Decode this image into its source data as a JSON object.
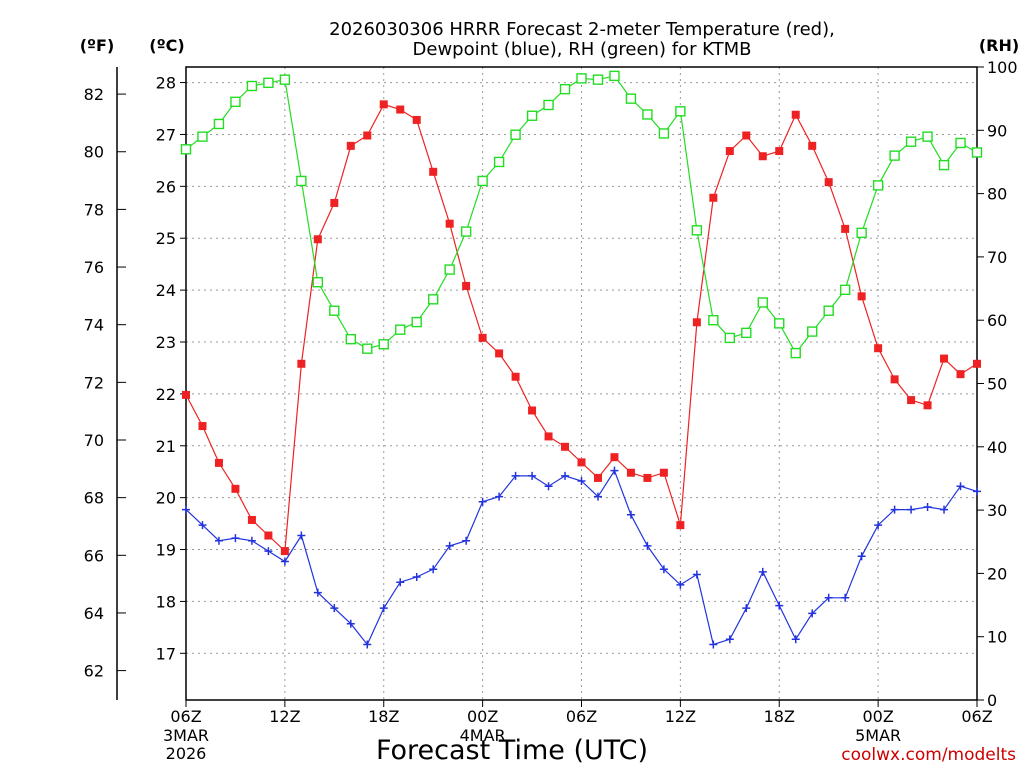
{
  "chart_data": {
    "type": "line",
    "title_lines": [
      "2026030306 HRRR Forecast 2-meter Temperature (red),",
      "Dewpoint (blue), RH (green) for KTMB"
    ],
    "xlabel": "Forecast Time (UTC)",
    "credit": "coolwx.com/modelts",
    "x_hours": [
      0,
      1,
      2,
      3,
      4,
      5,
      6,
      7,
      8,
      9,
      10,
      11,
      12,
      13,
      14,
      15,
      16,
      17,
      18,
      19,
      20,
      21,
      22,
      23,
      24,
      25,
      26,
      27,
      28,
      29,
      30,
      31,
      32,
      33,
      34,
      35,
      36,
      37,
      38,
      39,
      40,
      41,
      42,
      43,
      44,
      45,
      46,
      47,
      48
    ],
    "xlim": [
      0,
      48
    ],
    "x_ticks": [
      {
        "hour": 0,
        "label": "06Z",
        "sub": [
          "3MAR",
          "2026"
        ]
      },
      {
        "hour": 6,
        "label": "12Z",
        "sub": []
      },
      {
        "hour": 12,
        "label": "18Z",
        "sub": []
      },
      {
        "hour": 18,
        "label": "00Z",
        "sub": [
          "4MAR"
        ]
      },
      {
        "hour": 24,
        "label": "06Z",
        "sub": []
      },
      {
        "hour": 30,
        "label": "12Z",
        "sub": []
      },
      {
        "hour": 36,
        "label": "18Z",
        "sub": []
      },
      {
        "hour": 42,
        "label": "00Z",
        "sub": [
          "5MAR"
        ]
      },
      {
        "hour": 48,
        "label": "06Z",
        "sub": []
      }
    ],
    "axes": {
      "celsius": {
        "unit_label": "(ºC)",
        "range": [
          16.1,
          28.3
        ],
        "ticks": [
          17,
          18,
          19,
          20,
          21,
          22,
          23,
          24,
          25,
          26,
          27,
          28
        ]
      },
      "fahrenheit": {
        "unit_label": "(ºF)",
        "ticks": [
          62,
          64,
          66,
          68,
          70,
          72,
          74,
          76,
          78,
          80,
          82
        ]
      },
      "rh": {
        "unit_label": "(RH)",
        "range": [
          0,
          100
        ],
        "ticks": [
          0,
          10,
          20,
          30,
          40,
          50,
          60,
          70,
          80,
          90,
          100
        ]
      }
    },
    "series": [
      {
        "name": "Temperature",
        "axis": "celsius",
        "color": "#ee2222",
        "marker": "filled-square",
        "values": [
          21.98,
          21.38,
          20.67,
          20.17,
          19.57,
          19.27,
          18.97,
          22.58,
          24.98,
          25.68,
          26.78,
          26.98,
          27.58,
          27.48,
          27.28,
          26.28,
          25.28,
          24.08,
          23.08,
          22.78,
          22.33,
          21.68,
          21.18,
          20.98,
          20.68,
          20.38,
          20.78,
          20.48,
          20.38,
          20.48,
          19.47,
          23.38,
          25.78,
          26.68,
          26.98,
          26.58,
          26.68,
          27.38,
          26.78,
          26.08,
          25.18,
          23.88,
          22.88,
          22.28,
          21.88,
          21.78,
          22.68,
          22.38,
          22.58
        ]
      },
      {
        "name": "Dewpoint",
        "axis": "celsius",
        "color": "#2233dd",
        "marker": "plus",
        "values": [
          19.77,
          19.47,
          19.17,
          19.22,
          19.17,
          18.97,
          18.77,
          19.27,
          18.17,
          17.87,
          17.57,
          17.17,
          17.87,
          18.37,
          18.47,
          18.62,
          19.07,
          19.17,
          19.92,
          20.02,
          20.42,
          20.42,
          20.22,
          20.42,
          20.32,
          20.02,
          20.52,
          19.67,
          19.07,
          18.62,
          18.32,
          18.52,
          17.17,
          17.27,
          17.87,
          18.57,
          17.92,
          17.27,
          17.77,
          18.07,
          18.07,
          18.87,
          19.47,
          19.77,
          19.77,
          19.82,
          19.77,
          20.22,
          20.12
        ]
      },
      {
        "name": "RH",
        "axis": "rh",
        "color": "#22dd22",
        "marker": "open-square",
        "values": [
          87,
          89,
          91,
          94.5,
          97,
          97.5,
          98,
          82,
          66,
          61.5,
          57,
          55.5,
          56.2,
          58.5,
          59.7,
          63.3,
          68,
          74,
          82,
          85,
          89.3,
          92.3,
          94,
          96.5,
          98.2,
          98,
          98.6,
          95,
          92.5,
          89.5,
          93,
          74.2,
          60,
          57.2,
          58,
          62.8,
          59.5,
          54.8,
          58.2,
          61.5,
          64.8,
          73.8,
          81.3,
          86,
          88.2,
          89,
          84.5,
          88,
          86.5
        ]
      }
    ]
  }
}
